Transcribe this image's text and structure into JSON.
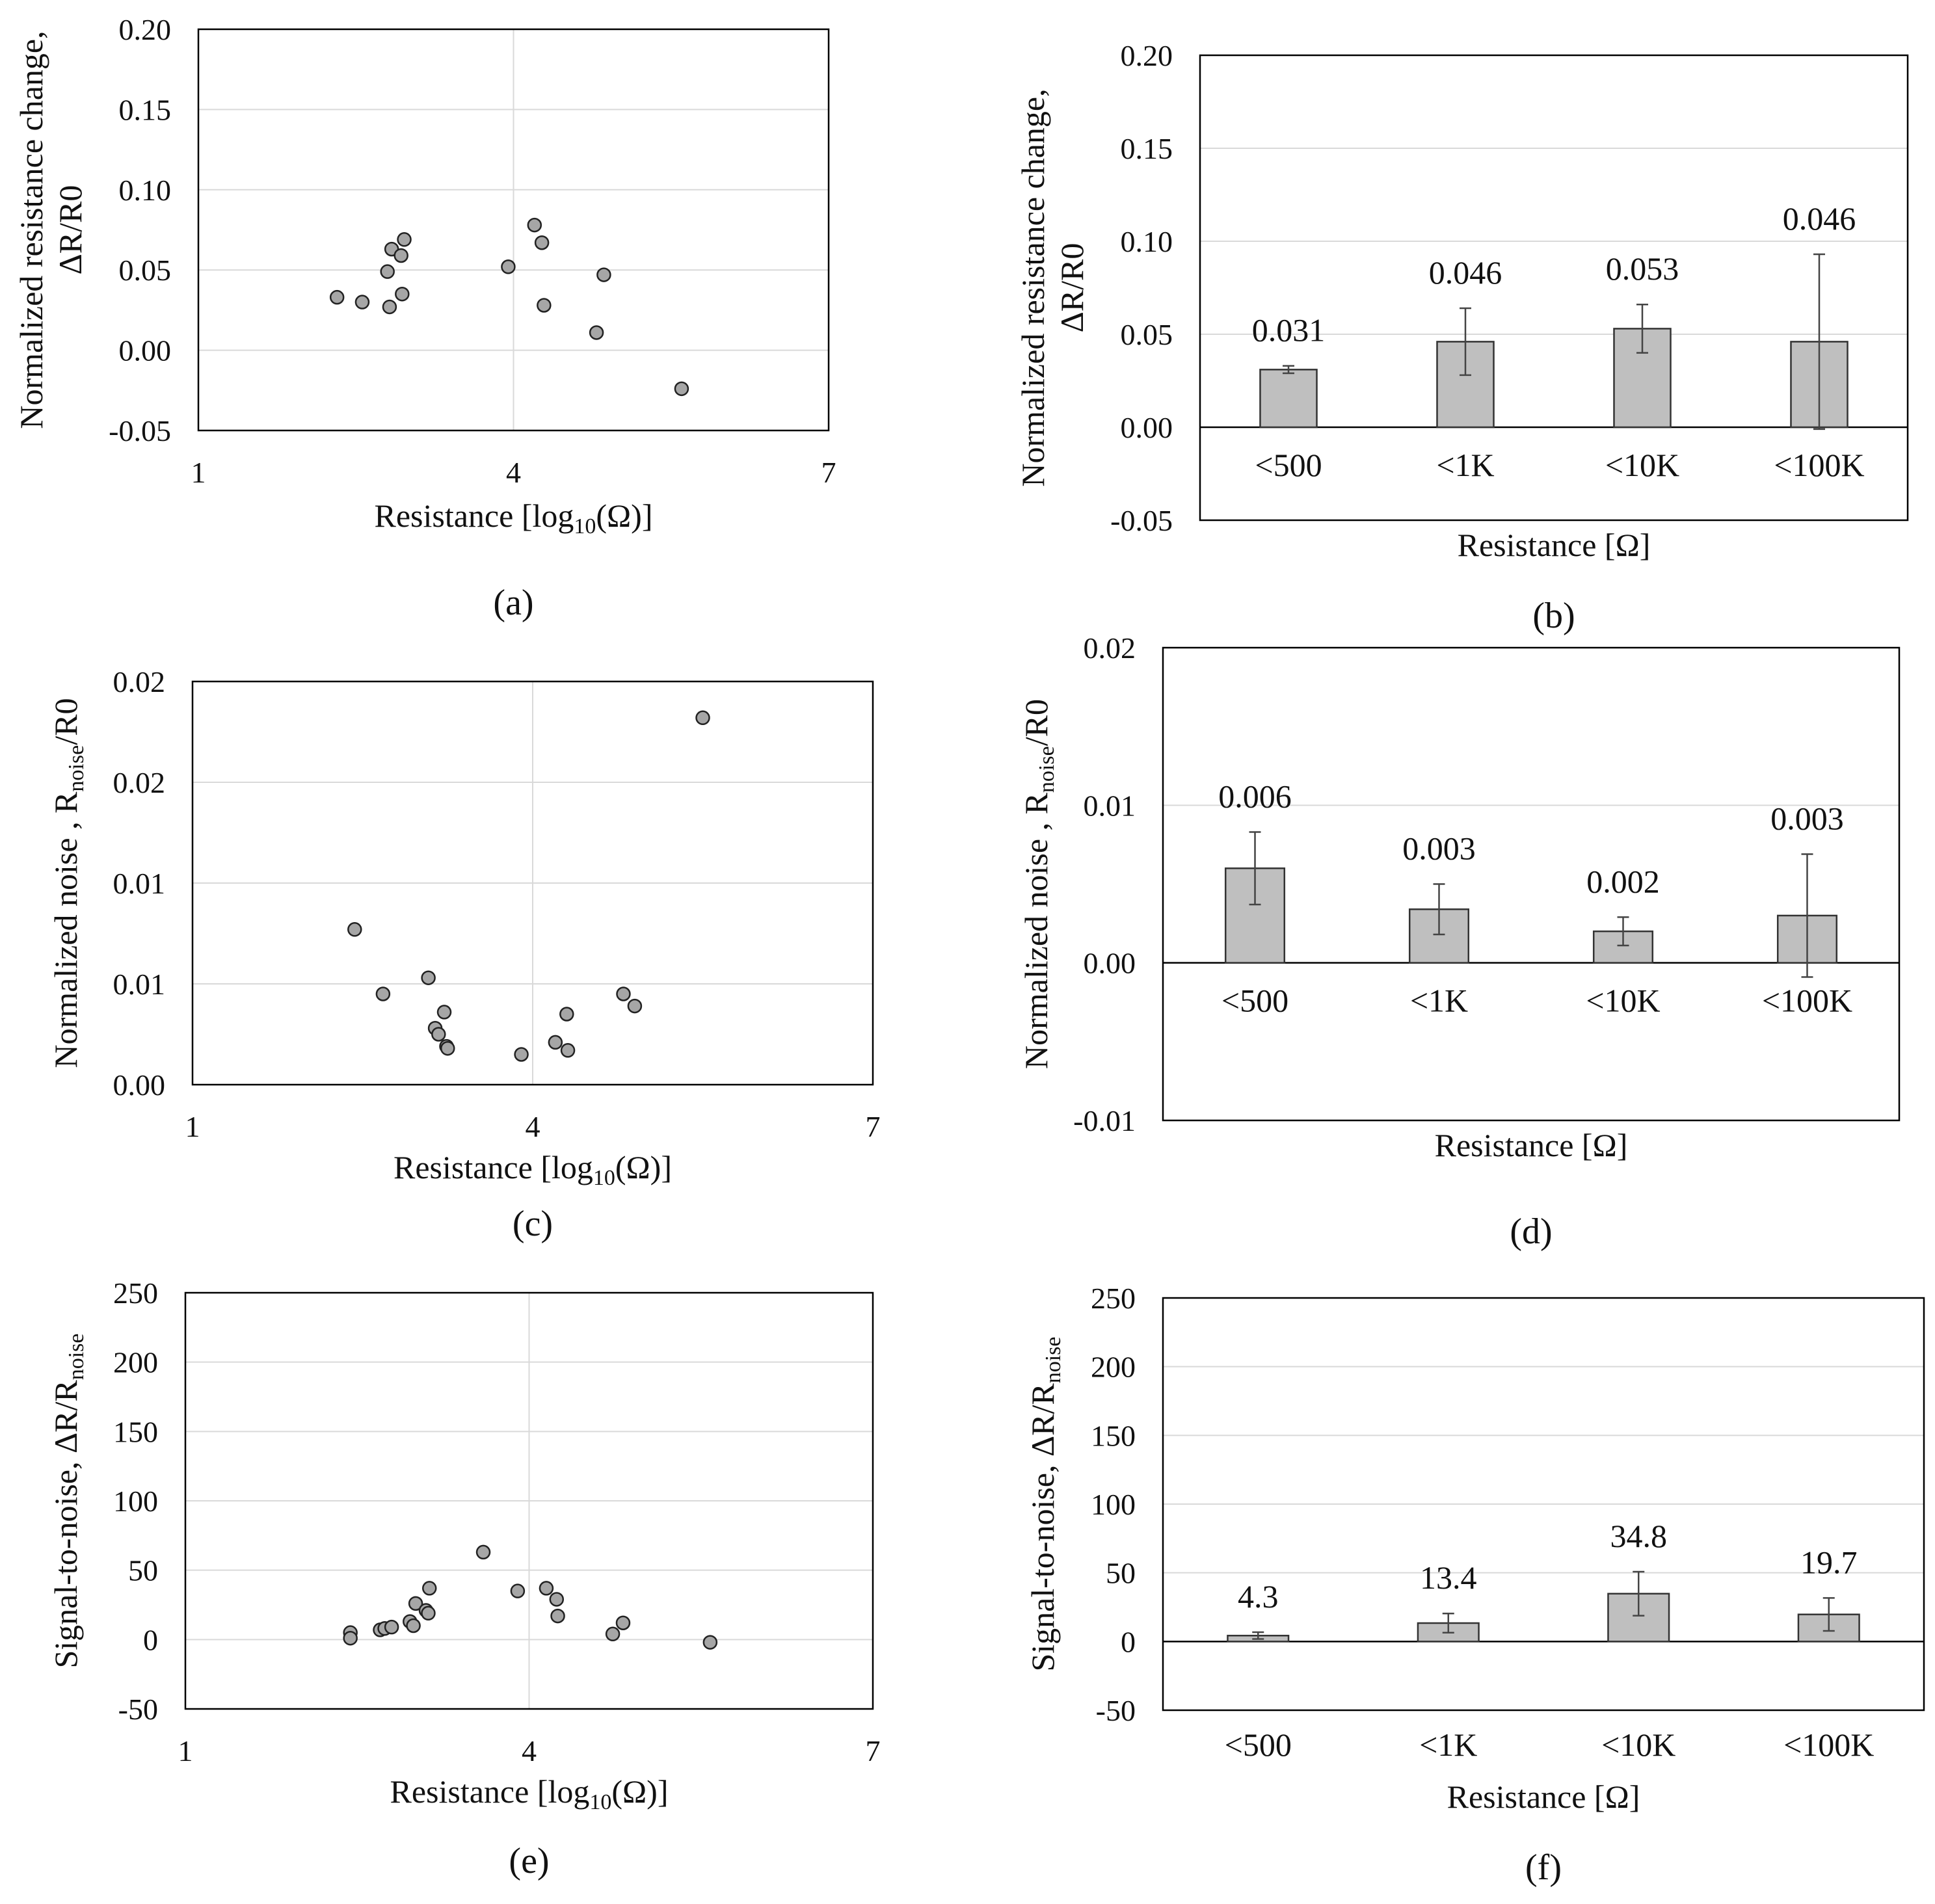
{
  "panels": [
    {
      "id": "a",
      "label": "(a)",
      "type": "scatter",
      "ylabel_lines": [
        "Normalized resistance change,",
        "ΔR/R0"
      ],
      "xlabel": {
        "main": "Resistance [log",
        "sub": "10",
        "tail": "(Ω)]"
      },
      "xlim": [
        1,
        7
      ],
      "xticks": [
        1,
        4,
        7
      ],
      "ylim": [
        -0.05,
        0.2
      ],
      "yticks": [
        -0.05,
        0.0,
        0.05,
        0.1,
        0.15,
        0.2
      ],
      "ytick_labels": [
        "-0.05",
        "0.00",
        "0.05",
        "0.10",
        "0.15",
        "0.20"
      ],
      "xgrid": [
        4
      ],
      "points": [
        [
          2.32,
          0.033
        ],
        [
          2.56,
          0.03
        ],
        [
          2.8,
          0.049
        ],
        [
          2.82,
          0.027
        ],
        [
          2.84,
          0.063
        ],
        [
          2.93,
          0.059
        ],
        [
          2.94,
          0.035
        ],
        [
          2.96,
          0.069
        ],
        [
          3.95,
          0.052
        ],
        [
          4.2,
          0.078
        ],
        [
          4.27,
          0.067
        ],
        [
          4.29,
          0.028
        ],
        [
          4.79,
          0.011
        ],
        [
          4.86,
          0.047
        ],
        [
          5.6,
          -0.024
        ]
      ]
    },
    {
      "id": "b",
      "label": "(b)",
      "type": "bar",
      "ylabel_lines": [
        "Normalized resistance change,",
        "ΔR/R0"
      ],
      "xlabel": {
        "main": "Resistance [Ω]",
        "sub": "",
        "tail": ""
      },
      "categories": [
        "<500",
        "<1K",
        "<10K",
        "<100K"
      ],
      "values": [
        0.031,
        0.046,
        0.053,
        0.046
      ],
      "errors": [
        0.002,
        0.018,
        0.013,
        0.047
      ],
      "value_labels": [
        "0.031",
        "0.046",
        "0.053",
        "0.046"
      ],
      "ylim": [
        -0.05,
        0.2
      ],
      "yticks": [
        -0.05,
        0.0,
        0.05,
        0.1,
        0.15,
        0.2
      ],
      "ytick_labels": [
        "-0.05",
        "0.00",
        "0.05",
        "0.10",
        "0.15",
        "0.20"
      ]
    },
    {
      "id": "c",
      "label": "(c)",
      "type": "scatter",
      "ylabel_lines": [],
      "ylabel_rich": {
        "main": "Normalized noise , R",
        "sub": "noise",
        "tail": "/R0"
      },
      "xlabel": {
        "main": "Resistance [log",
        "sub": "10",
        "tail": "(Ω)]"
      },
      "xlim": [
        1,
        7
      ],
      "xticks": [
        1,
        4,
        7
      ],
      "ylim": [
        0,
        0.02
      ],
      "yticks": [
        0,
        0.005,
        0.01,
        0.015,
        0.02
      ],
      "ytick_labels": [
        "0.00",
        "0.01",
        "0.01",
        "0.02",
        "0.02"
      ],
      "xgrid": [
        4
      ],
      "points": [
        [
          2.43,
          0.0077
        ],
        [
          2.68,
          0.0045
        ],
        [
          3.08,
          0.0053
        ],
        [
          3.14,
          0.0028
        ],
        [
          3.17,
          0.0025
        ],
        [
          3.22,
          0.0036
        ],
        [
          3.24,
          0.0019
        ],
        [
          3.25,
          0.0018
        ],
        [
          3.9,
          0.0015
        ],
        [
          4.2,
          0.0021
        ],
        [
          4.3,
          0.0035
        ],
        [
          4.31,
          0.0017
        ],
        [
          4.8,
          0.0045
        ],
        [
          4.9,
          0.0039
        ],
        [
          5.5,
          0.0182
        ]
      ]
    },
    {
      "id": "d",
      "label": "(d)",
      "type": "bar",
      "ylabel_lines": [],
      "ylabel_rich": {
        "main": "Normalized noise , R",
        "sub": "noise",
        "tail": "/R0"
      },
      "xlabel": {
        "main": "Resistance [Ω]",
        "sub": "",
        "tail": ""
      },
      "categories": [
        "<500",
        "<1K",
        "<10K",
        "<100K"
      ],
      "values": [
        0.006,
        0.0034,
        0.002,
        0.003
      ],
      "errors": [
        0.0023,
        0.0016,
        0.0009,
        0.0039
      ],
      "value_labels": [
        "0.006",
        "0.003",
        "0.002",
        "0.003"
      ],
      "ylim": [
        -0.01,
        0.02
      ],
      "yticks": [
        -0.01,
        0.0,
        0.01,
        0.02
      ],
      "ytick_labels": [
        "-0.01",
        "0.00",
        "0.01",
        "0.02"
      ]
    },
    {
      "id": "e",
      "label": "(e)",
      "type": "scatter",
      "ylabel_lines": [],
      "ylabel_rich": {
        "main": "Signal-to-noise, ΔR/R",
        "sub": "noise",
        "tail": ""
      },
      "xlabel": {
        "main": "Resistance [log",
        "sub": "10",
        "tail": "(Ω)]"
      },
      "xlim": [
        1,
        7
      ],
      "xticks": [
        1,
        4,
        7
      ],
      "ylim": [
        -50,
        250
      ],
      "yticks": [
        -50,
        0,
        50,
        100,
        150,
        200,
        250
      ],
      "ytick_labels": [
        "-50",
        "0",
        "50",
        "100",
        "150",
        "200",
        "250"
      ],
      "xgrid": [
        4
      ],
      "points": [
        [
          2.44,
          5
        ],
        [
          2.44,
          1
        ],
        [
          2.7,
          7
        ],
        [
          2.74,
          8
        ],
        [
          2.8,
          9
        ],
        [
          2.96,
          13
        ],
        [
          2.99,
          10
        ],
        [
          3.01,
          26
        ],
        [
          3.1,
          21
        ],
        [
          3.12,
          19
        ],
        [
          3.13,
          37
        ],
        [
          3.6,
          63
        ],
        [
          3.9,
          35
        ],
        [
          4.15,
          37
        ],
        [
          4.24,
          29
        ],
        [
          4.25,
          17
        ],
        [
          4.73,
          4
        ],
        [
          4.82,
          12
        ],
        [
          5.58,
          -2
        ]
      ]
    },
    {
      "id": "f",
      "label": "(f)",
      "type": "bar",
      "ylabel_lines": [],
      "ylabel_rich": {
        "main": "Signal-to-noise, ΔR/R",
        "sub": "noise",
        "tail": ""
      },
      "xlabel": {
        "main": "Resistance [Ω]",
        "sub": "",
        "tail": ""
      },
      "categories": [
        "<500",
        "<1K",
        "<10K",
        "<100K"
      ],
      "values": [
        4.3,
        13.4,
        34.8,
        19.7
      ],
      "errors": [
        2.5,
        7,
        16,
        12
      ],
      "value_labels": [
        "4.3",
        "13.4",
        "34.8",
        "19.7"
      ],
      "ylim": [
        -50,
        250
      ],
      "yticks": [
        -50,
        0,
        50,
        100,
        150,
        200,
        250
      ],
      "ytick_labels": [
        "-50",
        "0",
        "50",
        "100",
        "150",
        "200",
        "250"
      ]
    }
  ],
  "chart_data": [
    {
      "type": "scatter",
      "panel": "(a)",
      "xlabel": "Resistance [log10(Ω)]",
      "ylabel": "Normalized resistance change, ΔR/R0",
      "xlim": [
        1,
        7
      ],
      "ylim": [
        -0.05,
        0.2
      ]
    },
    {
      "type": "bar",
      "panel": "(b)",
      "xlabel": "Resistance [Ω]",
      "ylabel": "Normalized resistance change, ΔR/R0",
      "categories": [
        "<500",
        "<1K",
        "<10K",
        "<100K"
      ],
      "values": [
        0.031,
        0.046,
        0.053,
        0.046
      ],
      "ylim": [
        -0.05,
        0.2
      ]
    },
    {
      "type": "scatter",
      "panel": "(c)",
      "xlabel": "Resistance [log10(Ω)]",
      "ylabel": "Normalized noise , Rnoise/R0",
      "xlim": [
        1,
        7
      ],
      "ylim": [
        0,
        0.02
      ]
    },
    {
      "type": "bar",
      "panel": "(d)",
      "xlabel": "Resistance [Ω]",
      "ylabel": "Normalized noise , Rnoise/R0",
      "categories": [
        "<500",
        "<1K",
        "<10K",
        "<100K"
      ],
      "values": [
        0.006,
        0.003,
        0.002,
        0.003
      ],
      "ylim": [
        -0.01,
        0.02
      ]
    },
    {
      "type": "scatter",
      "panel": "(e)",
      "xlabel": "Resistance [log10(Ω)]",
      "ylabel": "Signal-to-noise, ΔR/Rnoise",
      "xlim": [
        1,
        7
      ],
      "ylim": [
        -50,
        250
      ]
    },
    {
      "type": "bar",
      "panel": "(f)",
      "xlabel": "Resistance [Ω]",
      "ylabel": "Signal-to-noise, ΔR/Rnoise",
      "categories": [
        "<500",
        "<1K",
        "<10K",
        "<100K"
      ],
      "values": [
        4.3,
        13.4,
        34.8,
        19.7
      ],
      "ylim": [
        -50,
        250
      ]
    }
  ]
}
